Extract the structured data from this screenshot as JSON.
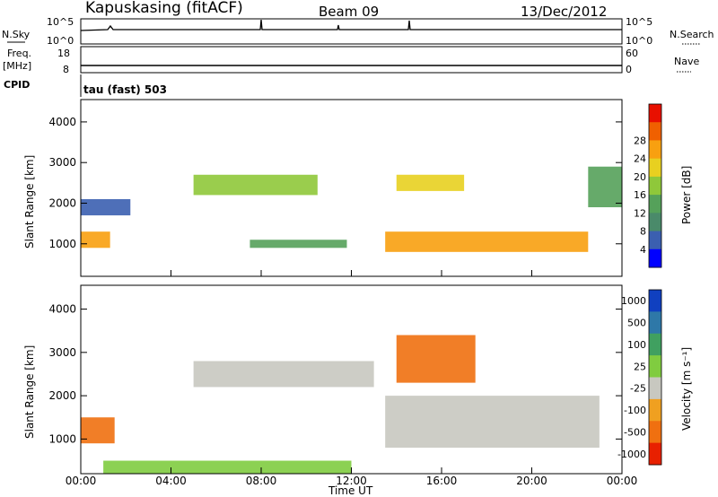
{
  "header": {
    "title": "Kapuskasing (fitACF)",
    "beam": "Beam 09",
    "date": "13/Dec/2012"
  },
  "top_panels": {
    "nsky": {
      "label": "N.Sky",
      "ticks_left": [
        "10^5",
        "10^0"
      ],
      "ticks_right": [
        "10^5",
        "10^0"
      ],
      "right_label": "N.Search"
    },
    "freq": {
      "label_line1": "Freq.",
      "label_line2": "[MHz]",
      "ticks_left": [
        "18",
        "8"
      ],
      "ticks_right": [
        "60",
        "0"
      ],
      "right_label": "Nave"
    },
    "cpid": {
      "label": "CPID",
      "mode_text": "tau (fast) 503"
    }
  },
  "chart_data": [
    {
      "type": "heatmap",
      "name": "power",
      "ylabel": "Slant Range [km]",
      "yticks": [
        "1000",
        "2000",
        "3000",
        "4000"
      ],
      "ylim": [
        200,
        4550
      ],
      "colorbar_label": "Power [dB]",
      "colorbar_ticks": [
        "4",
        "8",
        "12",
        "16",
        "20",
        "24",
        "28"
      ],
      "colors": [
        "#0000ff",
        "#3b5fb0",
        "#4a8a6a",
        "#55a15a",
        "#8fc83a",
        "#e8d020",
        "#f8a010",
        "#f06000",
        "#e81000"
      ],
      "features": [
        {
          "t": [
            0.0,
            1.3
          ],
          "range": [
            900,
            1300
          ],
          "power": 24
        },
        {
          "t": [
            0.0,
            2.2
          ],
          "range": [
            1700,
            2100
          ],
          "power": 6
        },
        {
          "t": [
            5.0,
            10.5
          ],
          "range": [
            2200,
            2700
          ],
          "power": 16
        },
        {
          "t": [
            7.5,
            11.8
          ],
          "range": [
            900,
            1100
          ],
          "power": 14
        },
        {
          "t": [
            13.5,
            22.5
          ],
          "range": [
            800,
            1300
          ],
          "power": 22
        },
        {
          "t": [
            14.0,
            17.0
          ],
          "range": [
            2300,
            2700
          ],
          "power": 18
        },
        {
          "t": [
            22.5,
            24.0
          ],
          "range": [
            1900,
            2900
          ],
          "power": 14
        }
      ]
    },
    {
      "type": "heatmap",
      "name": "velocity",
      "ylabel": "Slant Range [km]",
      "yticks": [
        "1000",
        "2000",
        "3000",
        "4000"
      ],
      "ylim": [
        200,
        4550
      ],
      "colorbar_label": "Velocity [m s⁻¹]",
      "colorbar_ticks": [
        "1000",
        "500",
        "100",
        "25",
        "-25",
        "-100",
        "-500",
        "-1000"
      ],
      "colors": [
        "#1040c0",
        "#2e78a8",
        "#40a060",
        "#80cc40",
        "#c8c8c0",
        "#f0a020",
        "#f07010",
        "#e82000"
      ],
      "features": [
        {
          "t": [
            0.0,
            1.5
          ],
          "range": [
            900,
            1500
          ],
          "velocity": -400
        },
        {
          "t": [
            5.0,
            13.0
          ],
          "range": [
            2200,
            2800
          ],
          "velocity": 0
        },
        {
          "t": [
            13.5,
            23.0
          ],
          "range": [
            800,
            2000
          ],
          "velocity": 0
        },
        {
          "t": [
            14.0,
            17.5
          ],
          "range": [
            2300,
            3400
          ],
          "velocity": -200
        },
        {
          "t": [
            1.0,
            12.0
          ],
          "range": [
            200,
            500
          ],
          "velocity": 80
        }
      ]
    }
  ],
  "x_axis": {
    "label": "Time UT",
    "ticks": [
      "00:00",
      "04:00",
      "08:00",
      "12:00",
      "16:00",
      "20:00",
      "00:00"
    ],
    "range_hours": [
      0,
      24
    ]
  }
}
